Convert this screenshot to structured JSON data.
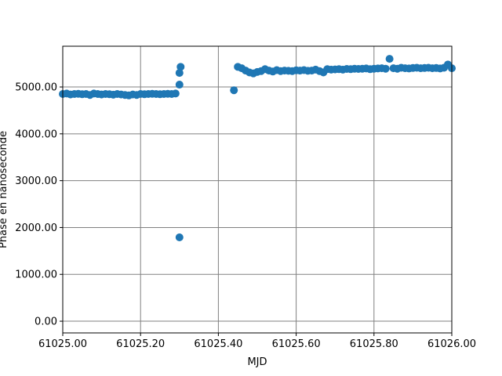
{
  "chart_data": {
    "type": "scatter",
    "x_label": "MJD",
    "y_label": "Phase en nanoseconde",
    "xlim": [
      61025.0,
      61026.0
    ],
    "ylim": [
      -250,
      5870
    ],
    "xticks": [
      {
        "value": 61025.0,
        "label": "61025.00"
      },
      {
        "value": 61025.2,
        "label": "61025.20"
      },
      {
        "value": 61025.4,
        "label": "61025.40"
      },
      {
        "value": 61025.6,
        "label": "61025.60"
      },
      {
        "value": 61025.8,
        "label": "61025.80"
      },
      {
        "value": 61026.0,
        "label": "61026.00"
      }
    ],
    "yticks": [
      {
        "value": 0,
        "label": "0.00"
      },
      {
        "value": 1000,
        "label": "1000.00"
      },
      {
        "value": 2000,
        "label": "2000.00"
      },
      {
        "value": 3000,
        "label": "3000.00"
      },
      {
        "value": 4000,
        "label": "4000.00"
      },
      {
        "value": 5000,
        "label": "5000.00"
      }
    ],
    "grid": true,
    "grid_color": "#808080",
    "series": [
      {
        "color": "#1f77b4",
        "x": [
          61025.0,
          61025.01,
          61025.02,
          61025.03,
          61025.04,
          61025.05,
          61025.06,
          61025.07,
          61025.08,
          61025.09,
          61025.1,
          61025.11,
          61025.12,
          61025.13,
          61025.14,
          61025.15,
          61025.16,
          61025.17,
          61025.18,
          61025.19,
          61025.2,
          61025.21,
          61025.22,
          61025.23,
          61025.24,
          61025.25,
          61025.26,
          61025.27,
          61025.28,
          61025.29,
          61025.3,
          61025.3,
          61025.3,
          61025.303,
          61025.44,
          61025.45,
          61025.46,
          61025.47,
          61025.48,
          61025.49,
          61025.5,
          61025.51,
          61025.52,
          61025.53,
          61025.54,
          61025.55,
          61025.56,
          61025.57,
          61025.58,
          61025.59,
          61025.6,
          61025.61,
          61025.62,
          61025.63,
          61025.64,
          61025.65,
          61025.66,
          61025.67,
          61025.68,
          61025.69,
          61025.7,
          61025.71,
          61025.72,
          61025.73,
          61025.74,
          61025.75,
          61025.76,
          61025.77,
          61025.78,
          61025.79,
          61025.8,
          61025.81,
          61025.82,
          61025.83,
          61025.84,
          61025.85,
          61025.86,
          61025.87,
          61025.88,
          61025.89,
          61025.9,
          61025.91,
          61025.92,
          61025.93,
          61025.94,
          61025.95,
          61025.96,
          61025.97,
          61025.98,
          61025.99,
          61026.0
        ],
        "values": [
          4850,
          4860,
          4840,
          4850,
          4855,
          4845,
          4850,
          4830,
          4860,
          4850,
          4840,
          4850,
          4845,
          4835,
          4850,
          4840,
          4830,
          4820,
          4840,
          4830,
          4850,
          4845,
          4850,
          4855,
          4850,
          4845,
          4850,
          4855,
          4850,
          4860,
          1790,
          5050,
          5300,
          5430,
          4930,
          5430,
          5400,
          5350,
          5310,
          5290,
          5320,
          5340,
          5380,
          5350,
          5330,
          5360,
          5340,
          5350,
          5345,
          5340,
          5355,
          5350,
          5360,
          5345,
          5350,
          5370,
          5340,
          5310,
          5380,
          5370,
          5375,
          5380,
          5370,
          5385,
          5380,
          5390,
          5385,
          5390,
          5395,
          5380,
          5390,
          5395,
          5400,
          5390,
          5600,
          5400,
          5390,
          5410,
          5400,
          5395,
          5405,
          5410,
          5400,
          5405,
          5410,
          5400,
          5405,
          5395,
          5410,
          5480,
          5400
        ]
      }
    ]
  }
}
